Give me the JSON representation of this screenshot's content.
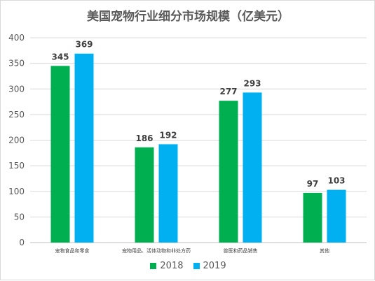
{
  "chart_data": {
    "type": "bar",
    "title": "美国宠物行业细分市场规模（亿美元）",
    "categories": [
      "宠物食品和零食",
      "宠物用品、活体动物和非处方药",
      "兽医和药品销售",
      "其他"
    ],
    "series": [
      {
        "name": "2018",
        "values": [
          345,
          186,
          277,
          97
        ],
        "color": "#00b050"
      },
      {
        "name": "2019",
        "values": [
          369,
          192,
          293,
          103
        ],
        "color": "#00b0f0"
      }
    ],
    "ylim": [
      0,
      400
    ],
    "yticks": [
      0,
      50,
      100,
      150,
      200,
      250,
      300,
      350,
      400
    ],
    "grid": true,
    "legend_position": "bottom"
  }
}
